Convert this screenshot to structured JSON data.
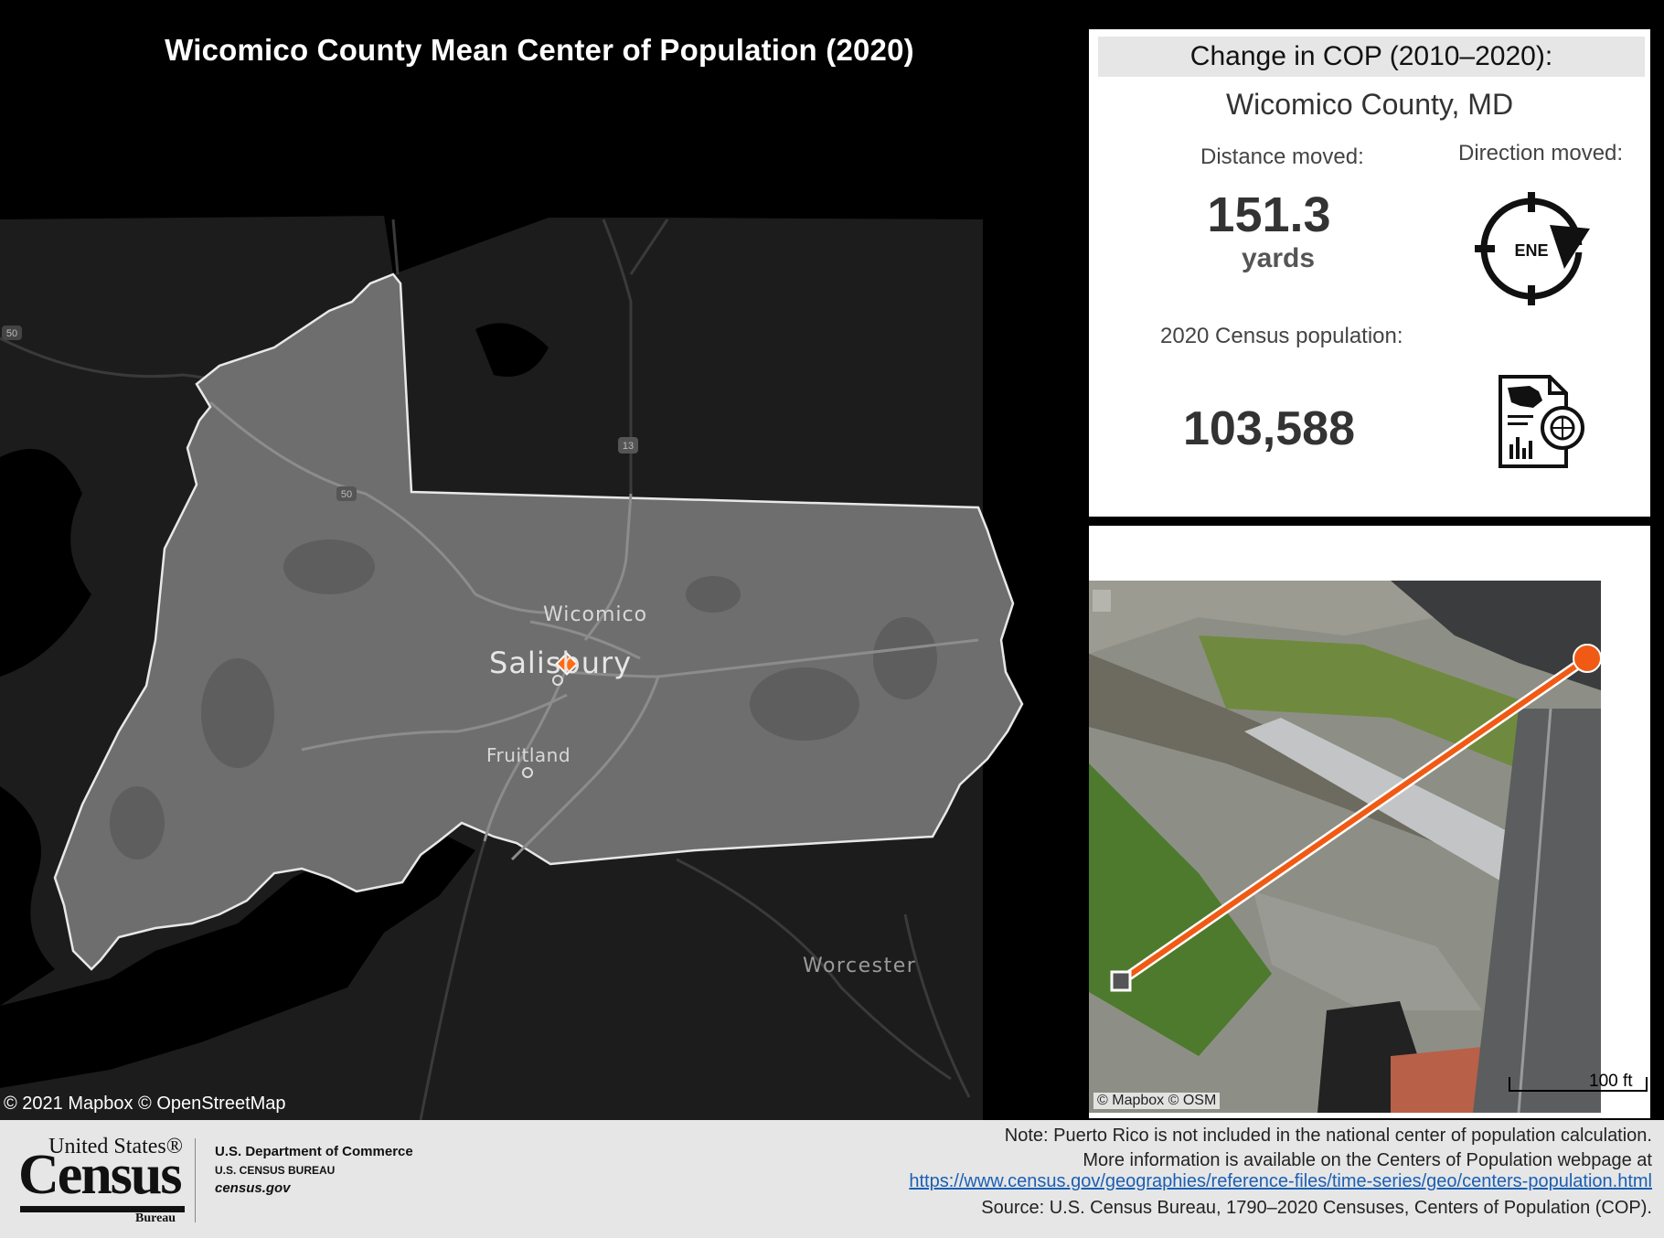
{
  "map": {
    "title": "Wicomico County Mean Center of Population (2020)",
    "attribution": "© 2021 Mapbox  © OpenStreetMap",
    "places": {
      "wicomico": "Wicomico",
      "salisbury": "Salisbury",
      "fruitland": "Fruitland",
      "worcester": "Worcester"
    },
    "route_shields": {
      "us50_a": "50",
      "us50_b": "50",
      "us13": "13"
    },
    "center_marker_color": "#ff6a13"
  },
  "info_card": {
    "header": "Change in COP (2010–2020):",
    "county": "Wicomico County, MD",
    "distance_label": "Distance moved:",
    "distance_value": "151.3",
    "distance_unit": "yards",
    "direction_label": "Direction moved:",
    "direction_value": "ENE",
    "population_label": "2020 Census population:",
    "population_value": "103,588",
    "icons": [
      "compass-icon",
      "census-document-icon"
    ]
  },
  "inset": {
    "attribution": "© Mapbox  © OSM",
    "scale_label": "100 ft",
    "line_color": "#f05a14"
  },
  "footer": {
    "logo_top": "United States®",
    "logo_word": "Census",
    "logo_bottom": "Bureau",
    "dept": "U.S. Department of Commerce",
    "bureau": "U.S. CENSUS BUREAU",
    "site": "census.gov",
    "note_line1": "Note: Puerto Rico is not included in the national center of population calculation.",
    "note_line2": "More information is available on the Centers of Population webpage at",
    "note_link": "https://www.census.gov/geographies/reference-files/time-series/geo/centers-population.html",
    "source": "Source: U.S. Census Bureau, 1790–2020 Censuses, Centers of Population (COP)."
  }
}
